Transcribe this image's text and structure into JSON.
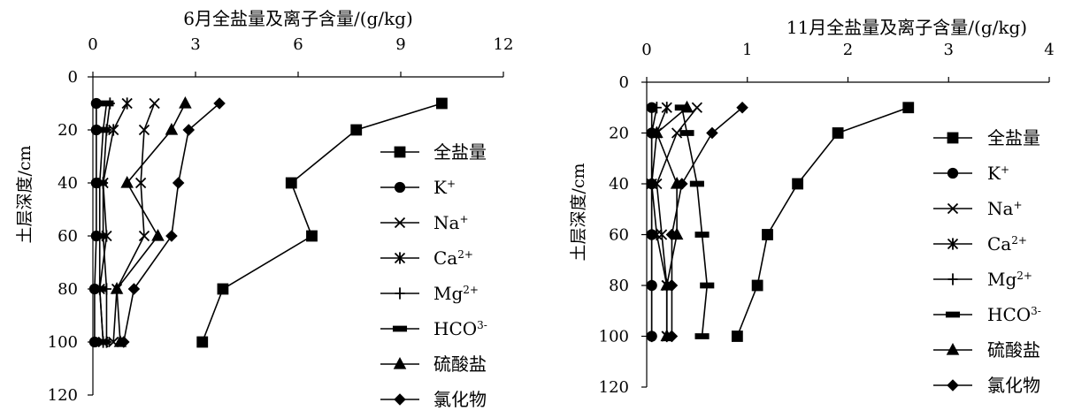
{
  "chart_data": [
    {
      "type": "line",
      "title": "6月全盐量及离子含量/(g/kg)",
      "xlabel": "6月全盐量及离子含量/(g/kg)",
      "ylabel": "土层深度/cm",
      "xlim": [
        0,
        12
      ],
      "ylim": [
        0,
        120
      ],
      "y_inverted": true,
      "x_axis_position": "top",
      "xticks": [
        "0",
        "3",
        "6",
        "9",
        "12"
      ],
      "yticks": [
        "0",
        "20",
        "40",
        "60",
        "80",
        "100",
        "120"
      ],
      "legend_position": "right",
      "series": [
        {
          "name": "全盐量",
          "marker": "square",
          "x": [
            10.2,
            7.7,
            5.8,
            6.4,
            3.8,
            3.2
          ],
          "y": [
            10,
            20,
            40,
            60,
            80,
            100
          ]
        },
        {
          "name": "K+",
          "marker": "circle",
          "x": [
            0.1,
            0.1,
            0.1,
            0.1,
            0.05,
            0.05
          ],
          "y": [
            10,
            20,
            40,
            60,
            80,
            100
          ]
        },
        {
          "name": "Na+",
          "marker": "x",
          "x": [
            1.8,
            1.5,
            1.4,
            1.5,
            0.7,
            0.6
          ],
          "y": [
            10,
            20,
            40,
            60,
            80,
            100
          ]
        },
        {
          "name": "Ca2+",
          "marker": "star",
          "x": [
            1.0,
            0.6,
            0.3,
            0.4,
            0.2,
            0.3
          ],
          "y": [
            10,
            20,
            40,
            60,
            80,
            100
          ]
        },
        {
          "name": "Mg2+",
          "marker": "plus",
          "x": [
            0.5,
            0.4,
            0.3,
            0.3,
            0.4,
            0.4
          ],
          "y": [
            10,
            20,
            40,
            60,
            80,
            100
          ]
        },
        {
          "name": "HCO3-",
          "marker": "dash",
          "x": [
            0.4,
            0.3,
            0.2,
            0.2,
            0.2,
            0.3
          ],
          "y": [
            10,
            20,
            40,
            60,
            80,
            100
          ]
        },
        {
          "name": "硫酸盐",
          "marker": "triangle",
          "x": [
            2.7,
            2.3,
            1.0,
            1.9,
            0.7,
            0.8
          ],
          "y": [
            10,
            20,
            40,
            60,
            80,
            100
          ]
        },
        {
          "name": "氯化物",
          "marker": "diamond",
          "x": [
            3.7,
            2.8,
            2.5,
            2.3,
            1.2,
            0.9
          ],
          "y": [
            10,
            20,
            40,
            60,
            80,
            100
          ]
        }
      ],
      "legend": [
        {
          "name": "全盐量",
          "base": "全盐量",
          "sup": "",
          "marker": "square"
        },
        {
          "name": "K+",
          "base": "K",
          "sup": "+",
          "marker": "circle"
        },
        {
          "name": "Na+",
          "base": "Na",
          "sup": "+",
          "marker": "x"
        },
        {
          "name": "Ca2+",
          "base": "Ca",
          "sup": "2+",
          "marker": "star"
        },
        {
          "name": "Mg2+",
          "base": "Mg",
          "sup": "2+",
          "marker": "plus"
        },
        {
          "name": "HCO3-",
          "base": "HCO",
          "sup": "3-",
          "marker": "dash"
        },
        {
          "name": "硫酸盐",
          "base": "硫酸盐",
          "sup": "",
          "marker": "triangle"
        },
        {
          "name": "氯化物",
          "base": "氯化物",
          "sup": "",
          "marker": "diamond"
        }
      ]
    },
    {
      "type": "line",
      "title": "11月全盐量及离子含量/(g/kg)",
      "xlabel": "11月全盐量及离子含量/(g/kg)",
      "ylabel": "土层深度/cm",
      "xlim": [
        0,
        4
      ],
      "ylim": [
        0,
        120
      ],
      "y_inverted": true,
      "x_axis_position": "top",
      "xticks": [
        "0",
        "1",
        "2",
        "3",
        "4"
      ],
      "yticks": [
        "0",
        "20",
        "40",
        "60",
        "80",
        "100",
        "120"
      ],
      "legend_position": "right",
      "series": [
        {
          "name": "全盐量",
          "marker": "square",
          "x": [
            2.6,
            1.9,
            1.5,
            1.2,
            1.1,
            0.9
          ],
          "y": [
            10,
            20,
            40,
            60,
            80,
            100
          ]
        },
        {
          "name": "K+",
          "marker": "circle",
          "x": [
            0.05,
            0.05,
            0.05,
            0.05,
            0.05,
            0.05
          ],
          "y": [
            10,
            20,
            40,
            60,
            80,
            100
          ]
        },
        {
          "name": "Na+",
          "marker": "x",
          "x": [
            0.5,
            0.3,
            0.1,
            0.15,
            0.2,
            0.2
          ],
          "y": [
            10,
            20,
            40,
            60,
            80,
            100
          ]
        },
        {
          "name": "Ca2+",
          "marker": "star",
          "x": [
            0.2,
            0.1,
            0.05,
            0.1,
            0.2,
            0.2
          ],
          "y": [
            10,
            20,
            40,
            60,
            80,
            100
          ]
        },
        {
          "name": "Mg2+",
          "marker": "plus",
          "x": [
            0.1,
            0.05,
            0.05,
            0.05,
            0.05,
            0.05
          ],
          "y": [
            10,
            20,
            40,
            60,
            80,
            100
          ]
        },
        {
          "name": "HCO3-",
          "marker": "dash",
          "x": [
            0.35,
            0.4,
            0.5,
            0.55,
            0.6,
            0.55
          ],
          "y": [
            10,
            20,
            40,
            60,
            80,
            100
          ]
        },
        {
          "name": "硫酸盐",
          "marker": "triangle",
          "x": [
            0.4,
            0.1,
            0.3,
            0.3,
            0.2,
            0.2
          ],
          "y": [
            10,
            20,
            40,
            60,
            80,
            100
          ]
        },
        {
          "name": "氯化物",
          "marker": "diamond",
          "x": [
            0.95,
            0.65,
            0.35,
            0.25,
            0.25,
            0.25
          ],
          "y": [
            10,
            20,
            40,
            60,
            80,
            100
          ]
        }
      ],
      "legend": [
        {
          "name": "全盐量",
          "base": "全盐量",
          "sup": "",
          "marker": "square"
        },
        {
          "name": "K+",
          "base": "K",
          "sup": "+",
          "marker": "circle"
        },
        {
          "name": "Na+",
          "base": "Na",
          "sup": "+",
          "marker": "x"
        },
        {
          "name": "Ca2+",
          "base": "Ca",
          "sup": "2+",
          "marker": "star"
        },
        {
          "name": "Mg2+",
          "base": "Mg",
          "sup": "2+",
          "marker": "plus"
        },
        {
          "name": "HCO3-",
          "base": "HCO",
          "sup": "3-",
          "marker": "dash"
        },
        {
          "name": "硫酸盐",
          "base": "硫酸盐",
          "sup": "",
          "marker": "triangle"
        },
        {
          "name": "氯化物",
          "base": "氯化物",
          "sup": "",
          "marker": "diamond"
        }
      ]
    }
  ]
}
